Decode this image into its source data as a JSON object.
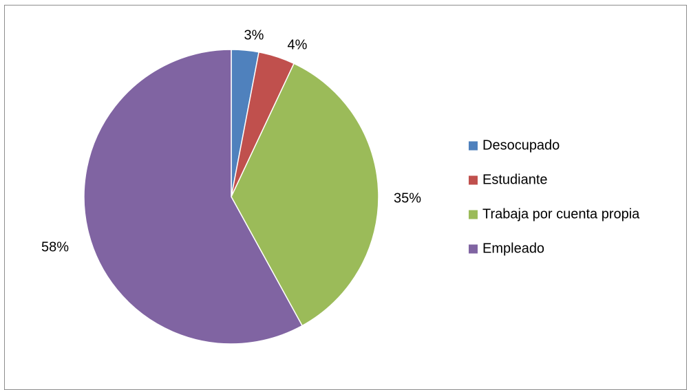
{
  "chart_data": {
    "type": "pie",
    "categories": [
      "Desocupado",
      "Estudiante",
      "Trabaja por cuenta propia",
      "Empleado"
    ],
    "values": [
      3,
      4,
      35,
      58
    ],
    "data_labels": [
      "3%",
      "4%",
      "35%",
      "58%"
    ],
    "colors": [
      "#4f81bd",
      "#c0504d",
      "#9bbb59",
      "#8064a2"
    ],
    "start_angle": "12 o'clock",
    "direction": "clockwise",
    "legend": {
      "placement": "right",
      "entries": [
        "Desocupado",
        "Estudiante",
        "Trabaja por cuenta propia",
        "Empleado"
      ]
    }
  }
}
